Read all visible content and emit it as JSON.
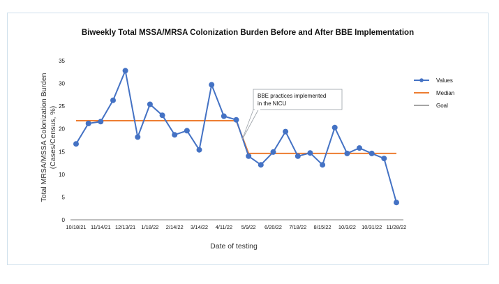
{
  "chart_data": {
    "type": "line",
    "title": "Biweekly Total MSSA/MRSA Colonization Burden Before and After BBE Implementation",
    "xlabel": "Date of testing",
    "ylabel_line1": "Total MRSA/MSSA Colonization Burden",
    "ylabel_line2": "(Cases/Census, %)",
    "ylim": [
      0,
      35
    ],
    "yticks": [
      "0",
      "5",
      "10",
      "15",
      "20",
      "25",
      "30",
      "35"
    ],
    "x_tick_labels": [
      "10/18/21",
      "11/14/21",
      "12/13/21",
      "1/18/22",
      "2/14/22",
      "3/14/22",
      "4/11/22",
      "5/9/22",
      "6/20/22",
      "7/18/22",
      "8/15/22",
      "10/3/22",
      "10/31/22",
      "11/28/22"
    ],
    "series": [
      {
        "name": "Values",
        "color": "#4472C4",
        "values": [
          16.7,
          21.2,
          21.6,
          26.3,
          32.8,
          18.2,
          25.4,
          23.0,
          18.7,
          19.6,
          15.4,
          29.7,
          22.8,
          22.0,
          14.0,
          12.1,
          14.9,
          19.4,
          14.0,
          14.7,
          12.1,
          20.3,
          14.6,
          15.8,
          14.6,
          13.5,
          3.8
        ]
      },
      {
        "name": "Median",
        "color": "#ED7D31",
        "values": [
          21.8,
          21.8,
          21.8,
          21.8,
          21.8,
          21.8,
          21.8,
          21.8,
          21.8,
          21.8,
          21.8,
          21.8,
          21.8,
          21.8,
          14.6,
          14.6,
          14.6,
          14.6,
          14.6,
          14.6,
          14.6,
          14.6,
          14.6,
          14.6,
          14.6,
          14.6,
          14.6
        ]
      },
      {
        "name": "Goal",
        "color": "#A5A5A5",
        "values": []
      }
    ],
    "legend_position": "right",
    "grid": false,
    "annotation": {
      "line1": "BBE practices implemented",
      "line2": "in the NICU"
    }
  }
}
